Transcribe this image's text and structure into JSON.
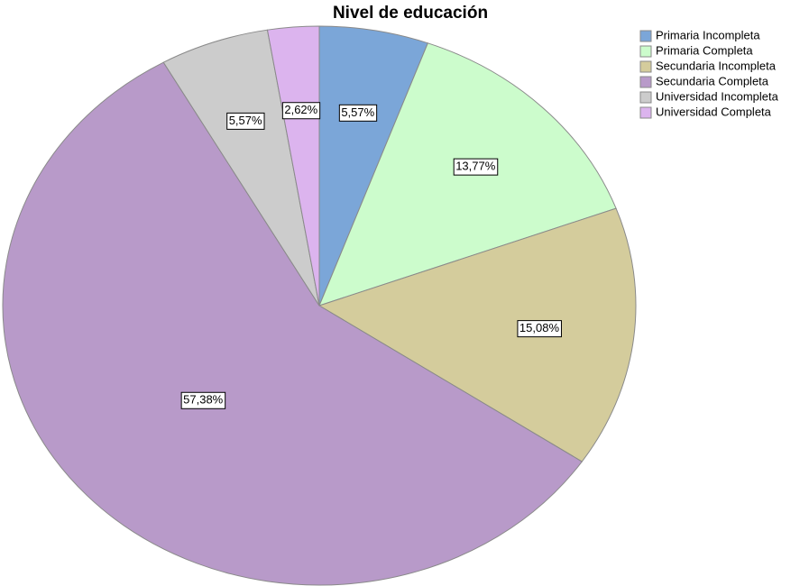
{
  "chart_data": {
    "type": "pie",
    "title": "Nivel de educación",
    "categories": [
      "Primaria Incompleta",
      "Primaria Completa",
      "Secundaria Incompleta",
      "Secundaria Completa",
      "Universidad Incompleta",
      "Universidad Completa"
    ],
    "values": [
      5.57,
      13.77,
      15.08,
      57.38,
      5.57,
      2.62
    ],
    "value_labels": [
      "5,57%",
      "13,77%",
      "15,08%",
      "57,38%",
      "5,57%",
      "2,62%"
    ],
    "colors": [
      "#7ba6d8",
      "#ccfccc",
      "#d4cc9c",
      "#b89ac9",
      "#cccccc",
      "#dcb4ee"
    ],
    "legend": "top-right"
  }
}
